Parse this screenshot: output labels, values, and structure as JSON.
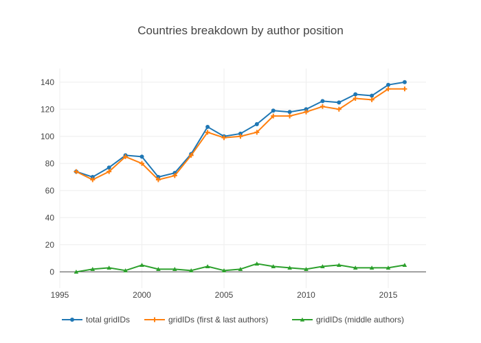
{
  "chart_data": {
    "type": "line",
    "title": "Countries breakdown by author position",
    "xlabel": "",
    "ylabel": "",
    "xlim": [
      1995,
      2017.3
    ],
    "ylim": [
      -12,
      150
    ],
    "x_ticks": [
      1995,
      2000,
      2005,
      2010,
      2015
    ],
    "y_ticks": [
      0,
      20,
      40,
      60,
      80,
      100,
      120,
      140
    ],
    "grid": true,
    "legend_position": "bottom",
    "x": [
      1996,
      1997,
      1998,
      1999,
      2000,
      2001,
      2002,
      2003,
      2004,
      2005,
      2006,
      2007,
      2008,
      2009,
      2010,
      2011,
      2012,
      2013,
      2014,
      2015,
      2016
    ],
    "series": [
      {
        "name": "total gridIDs",
        "color": "#1f77b4",
        "marker": "circle",
        "values": [
          74,
          70,
          77,
          86,
          85,
          70,
          73,
          87,
          107,
          100,
          102,
          109,
          119,
          118,
          120,
          126,
          125,
          131,
          130,
          138,
          140
        ]
      },
      {
        "name": "gridIDs (first & last authors)",
        "color": "#ff7f0e",
        "marker": "cross",
        "values": [
          74,
          68,
          74,
          85,
          80,
          68,
          71,
          86,
          103,
          99,
          100,
          103,
          115,
          115,
          118,
          122,
          120,
          128,
          127,
          135,
          135
        ]
      },
      {
        "name": "gridIDs (middle authors)",
        "color": "#2ca02c",
        "marker": "triangle",
        "values": [
          0,
          2,
          3,
          1,
          5,
          2,
          2,
          1,
          4,
          1,
          2,
          6,
          4,
          3,
          2,
          4,
          5,
          3,
          3,
          3,
          5
        ]
      }
    ]
  }
}
